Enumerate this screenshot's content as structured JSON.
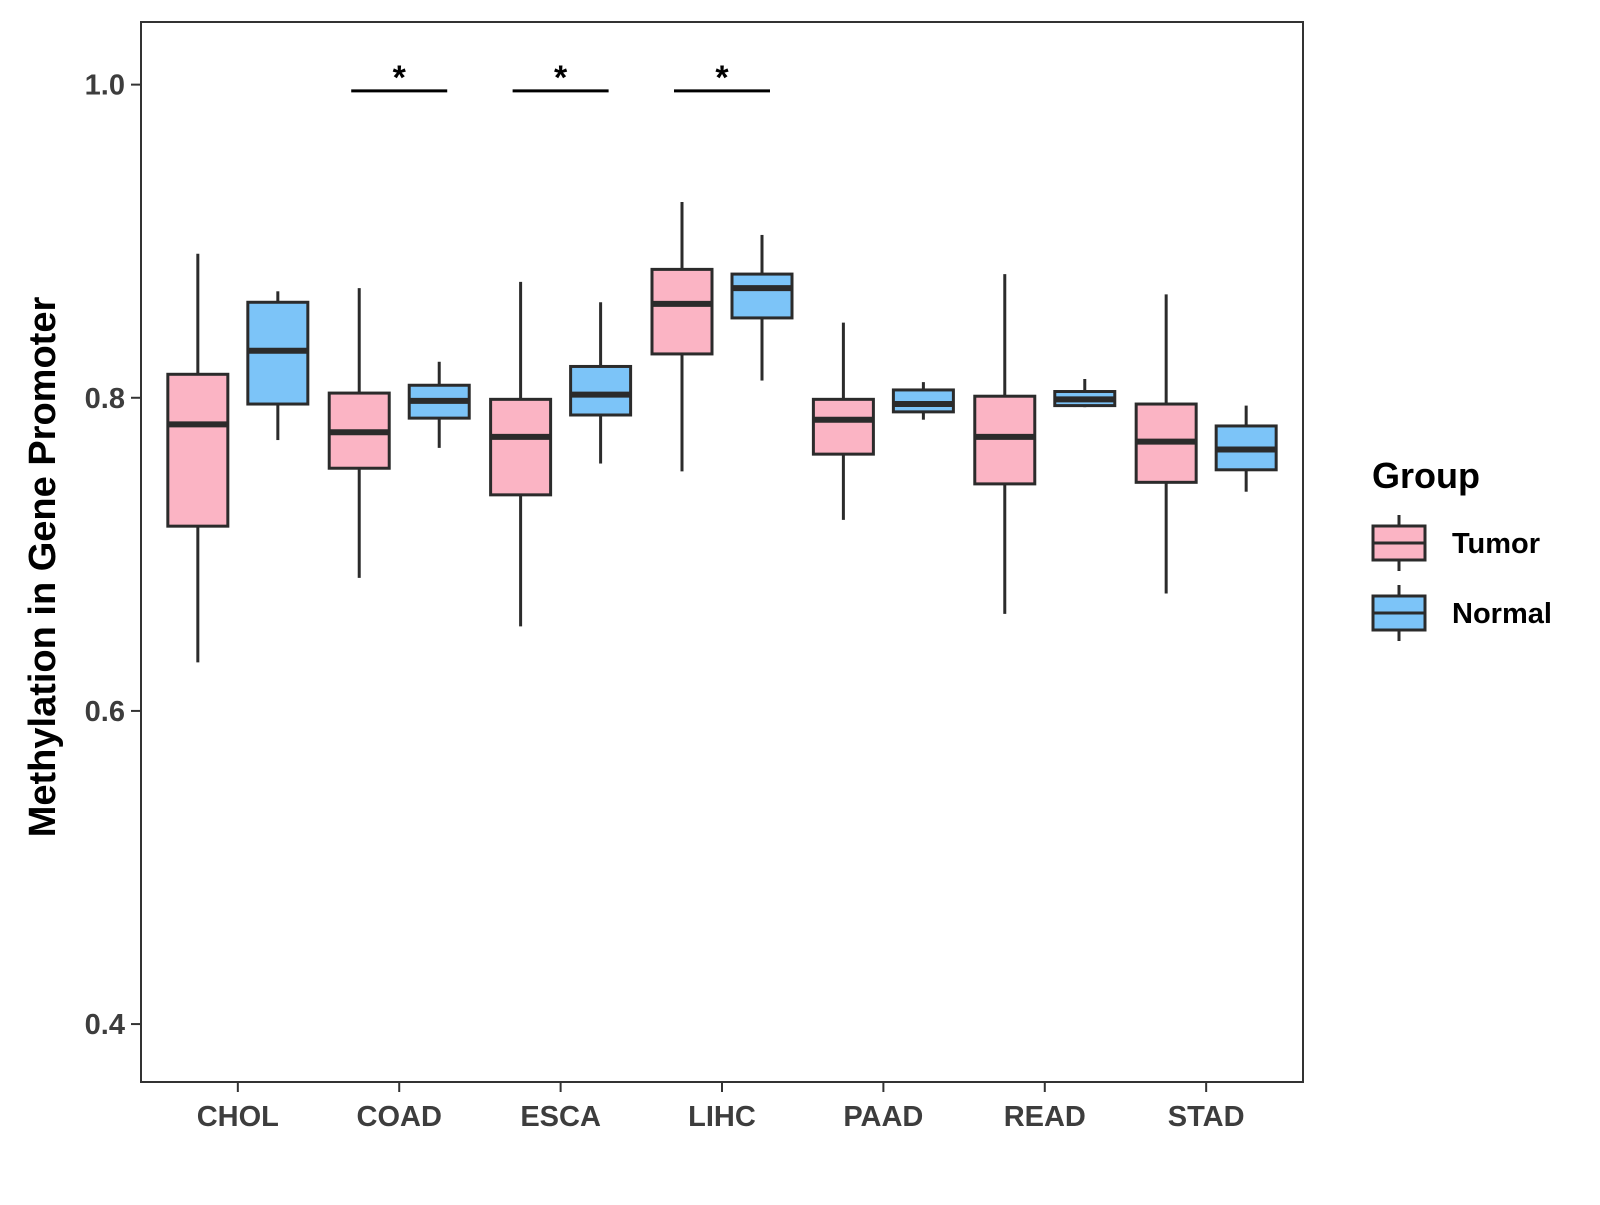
{
  "chart_data": {
    "type": "boxplot",
    "title": "",
    "xlabel": "",
    "ylabel": "Methylation in Gene Promoter",
    "ylim": [
      0.363,
      1.04
    ],
    "yticks": [
      0.4,
      0.6,
      0.8,
      1.0
    ],
    "ytick_labels": [
      "0.4",
      "0.6",
      "0.8",
      "1.0"
    ],
    "categories": [
      "CHOL",
      "COAD",
      "ESCA",
      "LIHC",
      "PAAD",
      "READ",
      "STAD"
    ],
    "grid": false,
    "legend": {
      "title": "Group",
      "placement": "right",
      "entries": [
        {
          "name": "Tumor",
          "color": "#fbb4c4"
        },
        {
          "name": "Normal",
          "color": "#7cc4f8"
        }
      ]
    },
    "series": [
      {
        "name": "Tumor",
        "color": "#fbb4c4",
        "boxes": [
          {
            "category": "CHOL",
            "whisker_low": 0.631,
            "q1": 0.718,
            "median": 0.783,
            "q3": 0.815,
            "whisker_high": 0.892
          },
          {
            "category": "COAD",
            "whisker_low": 0.685,
            "q1": 0.755,
            "median": 0.778,
            "q3": 0.803,
            "whisker_high": 0.87
          },
          {
            "category": "ESCA",
            "whisker_low": 0.654,
            "q1": 0.738,
            "median": 0.775,
            "q3": 0.799,
            "whisker_high": 0.874
          },
          {
            "category": "LIHC",
            "whisker_low": 0.753,
            "q1": 0.828,
            "median": 0.86,
            "q3": 0.882,
            "whisker_high": 0.925
          },
          {
            "category": "PAAD",
            "whisker_low": 0.722,
            "q1": 0.764,
            "median": 0.786,
            "q3": 0.799,
            "whisker_high": 0.848
          },
          {
            "category": "READ",
            "whisker_low": 0.662,
            "q1": 0.745,
            "median": 0.775,
            "q3": 0.801,
            "whisker_high": 0.879
          },
          {
            "category": "STAD",
            "whisker_low": 0.675,
            "q1": 0.746,
            "median": 0.772,
            "q3": 0.796,
            "whisker_high": 0.866
          }
        ]
      },
      {
        "name": "Normal",
        "color": "#7cc4f8",
        "boxes": [
          {
            "category": "CHOL",
            "whisker_low": 0.773,
            "q1": 0.796,
            "median": 0.83,
            "q3": 0.861,
            "whisker_high": 0.868
          },
          {
            "category": "COAD",
            "whisker_low": 0.768,
            "q1": 0.787,
            "median": 0.798,
            "q3": 0.808,
            "whisker_high": 0.823
          },
          {
            "category": "ESCA",
            "whisker_low": 0.758,
            "q1": 0.789,
            "median": 0.802,
            "q3": 0.82,
            "whisker_high": 0.861
          },
          {
            "category": "LIHC",
            "whisker_low": 0.811,
            "q1": 0.851,
            "median": 0.87,
            "q3": 0.879,
            "whisker_high": 0.904
          },
          {
            "category": "PAAD",
            "whisker_low": 0.786,
            "q1": 0.791,
            "median": 0.796,
            "q3": 0.805,
            "whisker_high": 0.81
          },
          {
            "category": "READ",
            "whisker_low": 0.794,
            "q1": 0.795,
            "median": 0.799,
            "q3": 0.804,
            "whisker_high": 0.812
          },
          {
            "category": "STAD",
            "whisker_low": 0.74,
            "q1": 0.754,
            "median": 0.767,
            "q3": 0.782,
            "whisker_high": 0.795
          }
        ]
      }
    ],
    "annotations": [
      {
        "category": "COAD",
        "label": "*",
        "y": 0.996
      },
      {
        "category": "ESCA",
        "label": "*",
        "y": 0.996
      },
      {
        "category": "LIHC",
        "label": "*",
        "y": 0.996
      }
    ],
    "colors": {
      "box_outline": "#2b2b2b",
      "panel_border": "#333333",
      "text": "#3d3d3d"
    }
  }
}
